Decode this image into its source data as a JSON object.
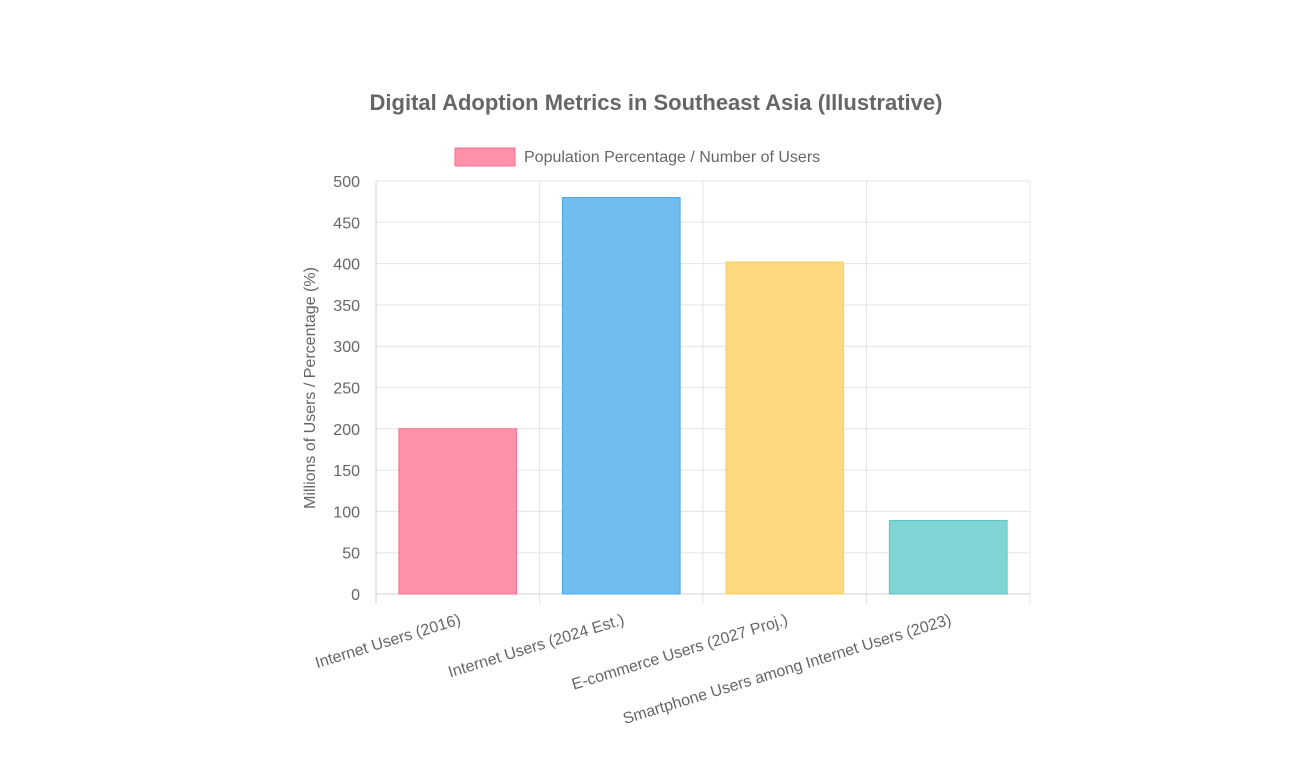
{
  "chart_data": {
    "type": "bar",
    "title": "Digital Adoption Metrics in Southeast Asia (Illustrative)",
    "ylabel": "Millions of Users / Percentage (%)",
    "xlabel": "",
    "ylim": [
      0,
      500
    ],
    "yticks": [
      0,
      50,
      100,
      150,
      200,
      250,
      300,
      350,
      400,
      450,
      500
    ],
    "grid": true,
    "legend_position": "top-center",
    "categories": [
      "Internet Users (2016)",
      "Internet Users (2024 Est.)",
      "E-commerce Users (2027 Proj.)",
      "Smartphone Users among Internet Users (2023)"
    ],
    "series": [
      {
        "name": "Population Percentage / Number of Users",
        "values": [
          200,
          480,
          402,
          89
        ]
      }
    ],
    "colors": {
      "fills": [
        "#ff91a9",
        "#70bdf0",
        "#ffd980",
        "#80d4d4"
      ],
      "strokes": [
        "#f2708f",
        "#49a9eb",
        "#ffce59",
        "#5cc5c5"
      ],
      "legend_fill": "#ff91a9",
      "legend_stroke": "#f2708f",
      "text": "#666666",
      "title": "#666666",
      "grid": "#e5e5e5"
    }
  }
}
